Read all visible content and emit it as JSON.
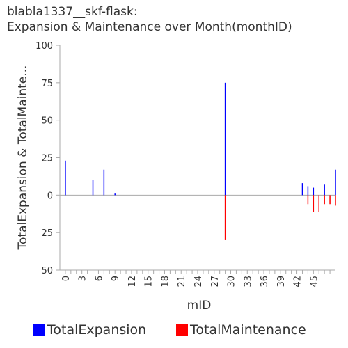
{
  "chart_data": {
    "type": "bar",
    "title": "blabla1337__skf-flask:",
    "subtitle": "Expansion & Maintenance over Month(monthID)",
    "xlabel": "mID",
    "ylabel": "TotalExpansion & TotalMainte...",
    "ylim": [
      -50,
      100
    ],
    "y_ticks": [
      100,
      75,
      50,
      25,
      0,
      -25,
      -50
    ],
    "y_tick_labels": [
      "100",
      "75",
      "50",
      "25",
      "0",
      "25",
      "50"
    ],
    "x_range": [
      -1,
      49
    ],
    "x_ticks": [
      0,
      3,
      6,
      9,
      12,
      15,
      18,
      21,
      24,
      27,
      30,
      33,
      36,
      39,
      42,
      45
    ],
    "x": [
      0,
      5,
      7,
      9,
      29,
      43,
      44,
      45,
      46,
      47,
      48,
      49
    ],
    "series": [
      {
        "name": "TotalExpansion",
        "color": "#0000ff",
        "values": [
          23,
          10,
          17,
          1,
          75,
          8,
          6,
          5,
          0,
          7,
          0,
          17
        ]
      },
      {
        "name": "TotalMaintenance",
        "color": "#ff0000",
        "values": [
          0,
          0,
          0,
          0,
          -30,
          0,
          -6,
          -11,
          -11,
          -6,
          -6,
          -7
        ]
      }
    ],
    "grid": false,
    "legend_position": "bottom"
  }
}
